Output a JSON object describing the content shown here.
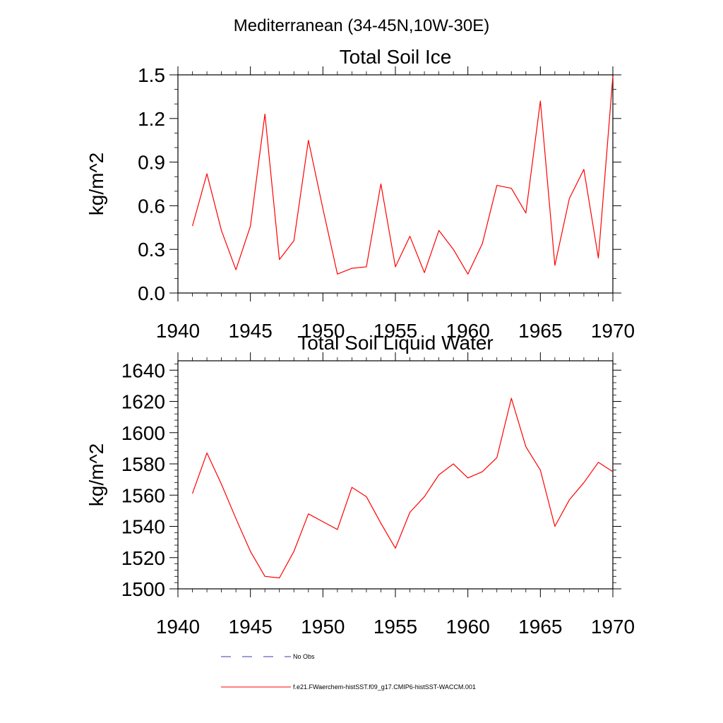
{
  "page_title": "Mediterranean (34-45N,10W-30E)",
  "legend": {
    "obs_label": "No Obs",
    "model_label": "f.e21.FWaerchem-histSST.f09_g17.CMIP6-histSST-WACCM.001",
    "obs_color": "#3a3ab0",
    "model_color": "#ff0000"
  },
  "chart_data": [
    {
      "type": "line",
      "title": "Total Soil Ice",
      "xlabel": "",
      "ylabel": "kg/m^2",
      "xlim": [
        1940,
        1970
      ],
      "ylim": [
        0.0,
        1.5
      ],
      "xticks": [
        "1940",
        "1945",
        "1950",
        "1955",
        "1960",
        "1965",
        "1970"
      ],
      "yticks": [
        "0.0",
        "0.3",
        "0.6",
        "0.9",
        "1.2",
        "1.5"
      ],
      "grid": false,
      "series": [
        {
          "color": "#ff0000",
          "x": [
            1941,
            1942,
            1943,
            1944,
            1945,
            1946,
            1947,
            1948,
            1949,
            1950,
            1951,
            1952,
            1953,
            1954,
            1955,
            1956,
            1957,
            1958,
            1959,
            1960,
            1961,
            1962,
            1963,
            1964,
            1965,
            1966,
            1967,
            1968,
            1969,
            1970
          ],
          "values": [
            0.46,
            0.82,
            0.43,
            0.16,
            0.46,
            1.23,
            0.23,
            0.36,
            1.05,
            0.58,
            0.13,
            0.17,
            0.18,
            0.75,
            0.18,
            0.39,
            0.14,
            0.43,
            0.3,
            0.13,
            0.34,
            0.74,
            0.72,
            0.55,
            1.32,
            0.19,
            0.65,
            0.85,
            0.24,
            1.49
          ]
        }
      ]
    },
    {
      "type": "line",
      "title": "Total Soil Liquid Water",
      "xlabel": "",
      "ylabel": "kg/m^2",
      "xlim": [
        1940,
        1970
      ],
      "ylim": [
        1500,
        1646
      ],
      "xticks": [
        "1940",
        "1945",
        "1950",
        "1955",
        "1960",
        "1965",
        "1970"
      ],
      "yticks": [
        "1500",
        "1520",
        "1540",
        "1560",
        "1580",
        "1600",
        "1620",
        "1640"
      ],
      "grid": false,
      "series": [
        {
          "color": "#ff0000",
          "x": [
            1941,
            1942,
            1943,
            1944,
            1945,
            1946,
            1947,
            1948,
            1949,
            1950,
            1951,
            1952,
            1953,
            1954,
            1955,
            1956,
            1957,
            1958,
            1959,
            1960,
            1961,
            1962,
            1963,
            1964,
            1965,
            1966,
            1967,
            1968,
            1969,
            1970
          ],
          "values": [
            1561,
            1587,
            1567,
            1545,
            1524,
            1508,
            1507,
            1524,
            1548,
            1543,
            1538,
            1565,
            1559,
            1542,
            1526,
            1549,
            1559,
            1573,
            1580,
            1571,
            1575,
            1584,
            1622,
            1591,
            1576,
            1540,
            1557,
            1568,
            1581,
            1575
          ]
        }
      ]
    }
  ]
}
